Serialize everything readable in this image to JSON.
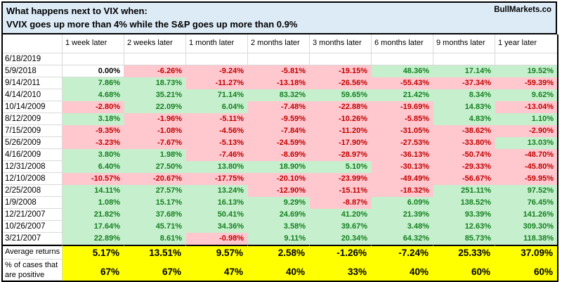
{
  "title": {
    "line1": "What happens next to VIX when:",
    "line2": "VVIX goes up more than 4% while the S&P goes up more than 0.9%",
    "brand": "BullMarkets.co"
  },
  "table": {
    "corner_label": "",
    "column_headers": [
      "1 week later",
      "2 weeks later",
      "1 month later",
      "2 months later",
      "3 months later",
      "6 months later",
      "9 months later",
      "1 year later"
    ],
    "rows": [
      {
        "date": "6/18/2019",
        "values": [
          "",
          "",
          "",
          "",
          "",
          "",
          "",
          ""
        ]
      },
      {
        "date": "5/9/2018",
        "values": [
          "0.00%",
          "-6.26%",
          "-9.24%",
          "-5.81%",
          "-19.15%",
          "48.36%",
          "17.14%",
          "19.52%"
        ]
      },
      {
        "date": "9/14/2011",
        "values": [
          "7.86%",
          "18.73%",
          "-11.27%",
          "-13.18%",
          "-26.56%",
          "-55.43%",
          "-37.34%",
          "-59.39%"
        ]
      },
      {
        "date": "4/14/2010",
        "values": [
          "4.68%",
          "35.21%",
          "71.14%",
          "83.32%",
          "59.65%",
          "21.42%",
          "8.34%",
          "9.62%"
        ]
      },
      {
        "date": "10/14/2009",
        "values": [
          "-2.80%",
          "22.09%",
          "6.04%",
          "-7.48%",
          "-22.88%",
          "-19.69%",
          "14.83%",
          "-13.04%"
        ]
      },
      {
        "date": "8/12/2009",
        "values": [
          "3.18%",
          "-1.96%",
          "-5.11%",
          "-9.59%",
          "-10.26%",
          "-5.85%",
          "4.83%",
          "1.10%"
        ]
      },
      {
        "date": "7/15/2009",
        "values": [
          "-9.35%",
          "-1.08%",
          "-4.56%",
          "-7.84%",
          "-11.20%",
          "-31.05%",
          "-38.62%",
          "-2.90%"
        ]
      },
      {
        "date": "5/26/2009",
        "values": [
          "-3.23%",
          "-7.67%",
          "-5.13%",
          "-24.59%",
          "-17.90%",
          "-27.53%",
          "-33.80%",
          "13.03%"
        ]
      },
      {
        "date": "4/16/2009",
        "values": [
          "3.80%",
          "1.98%",
          "-7.46%",
          "-8.69%",
          "-28.97%",
          "-36.13%",
          "-50.74%",
          "-48.70%"
        ]
      },
      {
        "date": "12/31/2008",
        "values": [
          "6.40%",
          "27.50%",
          "13.80%",
          "18.90%",
          "5.10%",
          "-30.13%",
          "-29.33%",
          "-45.80%"
        ]
      },
      {
        "date": "12/10/2008",
        "values": [
          "-10.57%",
          "-20.67%",
          "-17.75%",
          "-20.10%",
          "-23.99%",
          "-49.49%",
          "-56.67%",
          "-59.95%"
        ]
      },
      {
        "date": "2/25/2008",
        "values": [
          "14.11%",
          "27.57%",
          "13.24%",
          "-12.90%",
          "-15.11%",
          "-18.32%",
          "251.11%",
          "97.52%"
        ]
      },
      {
        "date": "1/9/2008",
        "values": [
          "1.08%",
          "15.17%",
          "16.13%",
          "9.29%",
          "-8.87%",
          "6.09%",
          "138.52%",
          "76.45%"
        ]
      },
      {
        "date": "12/21/2007",
        "values": [
          "21.82%",
          "37.68%",
          "50.41%",
          "24.69%",
          "41.20%",
          "21.39%",
          "93.39%",
          "141.26%"
        ]
      },
      {
        "date": "10/26/2007",
        "values": [
          "17.64%",
          "45.71%",
          "34.36%",
          "3.58%",
          "39.67%",
          "3.48%",
          "12.63%",
          "309.30%"
        ]
      },
      {
        "date": "3/21/2007",
        "values": [
          "22.89%",
          "8.61%",
          "-0.98%",
          "9.11%",
          "20.34%",
          "64.32%",
          "85.73%",
          "118.38%"
        ]
      }
    ],
    "summary_rows": [
      {
        "label": "Average returns",
        "values": [
          "5.17%",
          "13.51%",
          "9.57%",
          "2.58%",
          "-1.26%",
          "-7.24%",
          "25.33%",
          "37.09%"
        ]
      },
      {
        "label": "% of cases that are positive",
        "values": [
          "67%",
          "67%",
          "47%",
          "40%",
          "33%",
          "40%",
          "60%",
          "60%"
        ]
      }
    ]
  },
  "colors": {
    "title_bg": "#DDEBF7",
    "positive_bg": "#C6EFCE",
    "positive_text": "#14801F",
    "negative_bg": "#FFC7CE",
    "negative_text": "#C00000",
    "summary_bg": "#FFFF00",
    "gridline": "#D9D9D9",
    "border": "#000000"
  }
}
